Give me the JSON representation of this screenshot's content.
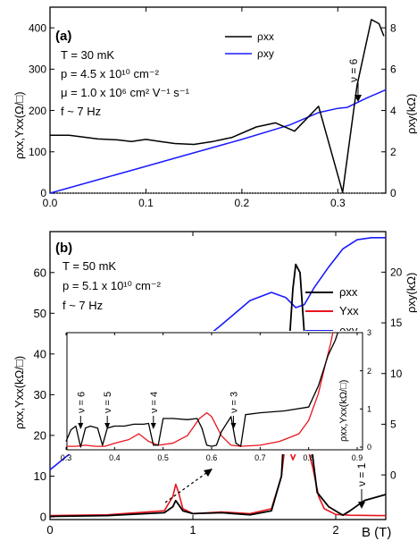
{
  "chart_data": [
    {
      "panel_label": "(a)",
      "type": "line",
      "xlim": [
        0,
        0.35
      ],
      "ylim_left": [
        0,
        450
      ],
      "ylim_right": [
        0,
        9
      ],
      "x_ticks": [
        "0.0",
        "0.1",
        "0.2",
        "0.3"
      ],
      "y_left_ticks": [
        "0",
        "100",
        "200",
        "300",
        "400"
      ],
      "y_right_ticks": [
        "0",
        "2",
        "4",
        "6",
        "8"
      ],
      "ylabel_left": "ρxx,Yxx(Ω/□)",
      "ylabel_right": "ρxy(kΩ)",
      "params": [
        "T = 30 mK",
        "p = 4.5  x 10¹⁰ cm⁻²",
        "μ = 1.0 x 10⁶ cm² V⁻¹ s⁻¹",
        "f ~ 7 Hz"
      ],
      "annotation": "ν = 6",
      "annotation_x": 0.305,
      "grid": false,
      "legend": "top-right",
      "series": [
        {
          "name": "ρxx",
          "color": "#000000",
          "axis": "left",
          "x": [
            0,
            0.02,
            0.05,
            0.07,
            0.085,
            0.1,
            0.115,
            0.13,
            0.15,
            0.17,
            0.19,
            0.215,
            0.235,
            0.255,
            0.28,
            0.305,
            0.32,
            0.335,
            0.343,
            0.348
          ],
          "y": [
            140,
            140,
            131,
            129,
            125,
            130,
            125,
            120,
            118,
            125,
            135,
            160,
            170,
            150,
            210,
            2,
            260,
            420,
            410,
            380
          ]
        },
        {
          "name": "ρxy",
          "color": "#1a1aff",
          "axis": "right",
          "x": [
            0,
            0.05,
            0.1,
            0.15,
            0.2,
            0.25,
            0.28,
            0.3,
            0.31,
            0.33,
            0.35
          ],
          "y": [
            0,
            0.65,
            1.3,
            1.95,
            2.6,
            3.3,
            3.9,
            4.1,
            4.15,
            4.6,
            5.0
          ]
        }
      ]
    },
    {
      "panel_label": "(b)",
      "type": "line",
      "xlim": [
        0,
        2.35
      ],
      "ylim_left": [
        0,
        65
      ],
      "ylim_right": [
        -4.4,
        24
      ],
      "x_ticks": [
        "0",
        "1",
        "2"
      ],
      "y_left_ticks": [
        "0",
        "10",
        "20",
        "30",
        "40",
        "50",
        "60"
      ],
      "y_right_ticks": [
        "0",
        "5",
        "10",
        "15",
        "20"
      ],
      "xlabel": "B (T)",
      "ylabel_left": "ρxx,Yxx(kΩ/□)",
      "ylabel_right": "ρxy(kΩ)",
      "params": [
        "T = 50 mK",
        "p = 5.1 x 10¹⁰ cm⁻²",
        "f ~ 7 Hz"
      ],
      "annotation": "ν = 1",
      "annotation_x": 2.08,
      "grid": false,
      "legend": "right",
      "series": [
        {
          "name": "ρxx",
          "color": "#000000",
          "axis": "left",
          "x": [
            0,
            0.4,
            0.8,
            0.86,
            0.88,
            0.9,
            0.93,
            1.0,
            1.2,
            1.4,
            1.55,
            1.62,
            1.66,
            1.7,
            1.72,
            1.75,
            1.78,
            1.82,
            1.87,
            1.95,
            2.05,
            2.1,
            2.2,
            2.35
          ],
          "y": [
            0.1,
            0.3,
            1.0,
            2.5,
            4.0,
            3.0,
            1.5,
            0.8,
            1.0,
            0.5,
            1.5,
            10,
            35,
            56,
            62,
            60,
            45,
            20,
            6,
            2.5,
            0.4,
            1.5,
            4,
            5.5
          ]
        },
        {
          "name": "Yxx",
          "color": "#e8141e",
          "axis": "left",
          "x": [
            0,
            0.4,
            0.8,
            0.86,
            0.88,
            0.9,
            0.93,
            1.0,
            1.2,
            1.4,
            1.55,
            1.62,
            1.65,
            1.7,
            1.75,
            1.8,
            1.84,
            1.88,
            1.92,
            2.0,
            2.1,
            2.3,
            2.35
          ],
          "y": [
            0.3,
            0.5,
            1.5,
            5,
            8,
            6,
            2,
            0.8,
            1.2,
            0.8,
            2,
            10,
            19,
            14,
            18,
            17.5,
            12,
            5,
            2,
            0.6,
            0.4,
            0.3,
            0.3
          ]
        },
        {
          "name": "ρxy",
          "color": "#1a1aff",
          "axis": "right",
          "x": [
            0,
            0.2,
            0.4,
            0.6,
            0.8,
            1.0,
            1.2,
            1.4,
            1.55,
            1.65,
            1.72,
            1.78,
            1.85,
            1.95,
            2.05,
            2.15,
            2.25,
            2.35
          ],
          "y": [
            0.5,
            2.8,
            5.5,
            8.0,
            10.5,
            12.5,
            14.8,
            17.2,
            18.0,
            17.5,
            16.5,
            16.8,
            18.5,
            20.5,
            22.3,
            23.2,
            23.4,
            23.4
          ]
        }
      ],
      "inset": {
        "xlim": [
          0.3,
          0.9
        ],
        "ylim_left": [
          0,
          3
        ],
        "x_ticks": [
          "0.3",
          "0.4",
          "0.5",
          "0.6",
          "0.7",
          "0.8",
          "0.9"
        ],
        "y_left_ticks": [
          "0",
          "1",
          "2",
          "3"
        ],
        "ylabel_left": "ρxx,Yxx(kΩ/□)",
        "annotations": [
          {
            "text": "ν = 6",
            "x": 0.33
          },
          {
            "text": "ν = 5",
            "x": 0.385
          },
          {
            "text": "ν = 4",
            "x": 0.48
          },
          {
            "text": "ν = 3",
            "x": 0.645
          }
        ],
        "series": [
          {
            "name": "ρxx",
            "color": "#000000",
            "x": [
              0.3,
              0.31,
              0.32,
              0.33,
              0.34,
              0.35,
              0.365,
              0.375,
              0.385,
              0.4,
              0.42,
              0.44,
              0.46,
              0.47,
              0.48,
              0.49,
              0.5,
              0.52,
              0.55,
              0.57,
              0.58,
              0.59,
              0.6,
              0.61,
              0.62,
              0.64,
              0.65,
              0.66,
              0.67,
              0.7,
              0.75,
              0.8,
              0.82,
              0.84,
              0.855,
              0.86
            ],
            "y": [
              0.15,
              0.45,
              0.55,
              0.0,
              0.5,
              0.55,
              0.5,
              0.05,
              0.5,
              0.55,
              0.55,
              0.6,
              0.6,
              0.62,
              0.05,
              0.05,
              0.75,
              0.75,
              0.72,
              0.75,
              0.5,
              0.05,
              0.02,
              0.05,
              0.4,
              0.8,
              0.1,
              0.02,
              0.85,
              0.9,
              0.95,
              1.05,
              1.6,
              2.4,
              2.8,
              3.0
            ]
          },
          {
            "name": "Yxx",
            "color": "#e8141e",
            "x": [
              0.3,
              0.32,
              0.34,
              0.36,
              0.38,
              0.4,
              0.43,
              0.45,
              0.47,
              0.49,
              0.52,
              0.55,
              0.575,
              0.59,
              0.6,
              0.62,
              0.64,
              0.66,
              0.7,
              0.74,
              0.78,
              0.8,
              0.82,
              0.835,
              0.845,
              0.85
            ],
            "y": [
              0.02,
              0.02,
              0.05,
              0.02,
              0.02,
              0.1,
              0.2,
              0.35,
              0.15,
              0.05,
              0.1,
              0.3,
              0.75,
              0.9,
              0.8,
              0.3,
              0.05,
              0.02,
              0.05,
              0.15,
              0.35,
              0.7,
              1.4,
              2.2,
              2.7,
              3.0
            ]
          }
        ]
      }
    }
  ]
}
